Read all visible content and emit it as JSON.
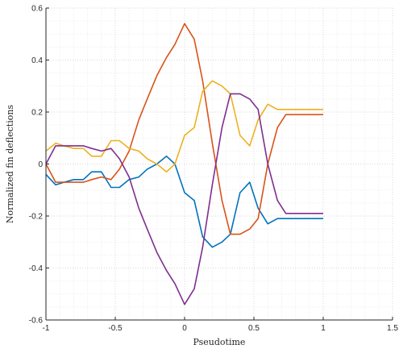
{
  "chart_data": {
    "type": "line",
    "title": "",
    "xlabel": "Pseudotime",
    "ylabel": "Normalized fin deflections",
    "xlim": [
      -1,
      1.5
    ],
    "ylim": [
      -0.6,
      0.6
    ],
    "xticks": [
      -1,
      -0.5,
      0,
      0.5,
      1,
      1.5
    ],
    "xtick_labels": [
      "-1",
      "-0.5",
      "0",
      "0.5",
      "1",
      "1.5"
    ],
    "yticks": [
      -0.6,
      -0.4,
      -0.2,
      0,
      0.2,
      0.4,
      0.6
    ],
    "ytick_labels": [
      "-0.6",
      "-0.4",
      "-0.2",
      "0",
      "0.2",
      "0.4",
      "0.6"
    ],
    "grid": true,
    "grid_style": "dotted, minor and major",
    "legend": "none",
    "series": [
      {
        "color": "#0072BD",
        "x": [
          -1,
          -0.93,
          -0.87,
          -0.8,
          -0.73,
          -0.67,
          -0.6,
          -0.53,
          -0.47,
          -0.4,
          -0.33,
          -0.27,
          -0.2,
          -0.13,
          -0.07,
          0,
          0.07,
          0.13,
          0.2,
          0.27,
          0.33,
          0.4,
          0.47,
          0.53,
          0.6,
          0.67,
          0.73,
          0.8,
          0.87,
          0.93,
          1
        ],
        "y": [
          -0.04,
          -0.08,
          -0.07,
          -0.06,
          -0.06,
          -0.03,
          -0.03,
          -0.09,
          -0.09,
          -0.06,
          -0.05,
          -0.02,
          0.0,
          0.03,
          0.0,
          -0.11,
          -0.14,
          -0.28,
          -0.32,
          -0.3,
          -0.27,
          -0.11,
          -0.07,
          -0.17,
          -0.23,
          -0.21,
          -0.21,
          -0.21,
          -0.21,
          -0.21,
          -0.21
        ]
      },
      {
        "color": "#D95319",
        "x": [
          -1,
          -0.93,
          -0.87,
          -0.8,
          -0.73,
          -0.67,
          -0.6,
          -0.53,
          -0.47,
          -0.4,
          -0.33,
          -0.27,
          -0.2,
          -0.13,
          -0.07,
          0,
          0.07,
          0.13,
          0.2,
          0.27,
          0.33,
          0.4,
          0.47,
          0.53,
          0.6,
          0.67,
          0.73,
          0.8,
          0.87,
          0.93,
          1
        ],
        "y": [
          0.0,
          -0.07,
          -0.07,
          -0.07,
          -0.07,
          -0.06,
          -0.05,
          -0.06,
          -0.02,
          0.05,
          0.17,
          0.25,
          0.34,
          0.41,
          0.46,
          0.54,
          0.48,
          0.32,
          0.08,
          -0.14,
          -0.27,
          -0.27,
          -0.25,
          -0.21,
          0.0,
          0.14,
          0.19,
          0.19,
          0.19,
          0.19,
          0.19
        ]
      },
      {
        "color": "#EDB120",
        "x": [
          -1,
          -0.93,
          -0.87,
          -0.8,
          -0.73,
          -0.67,
          -0.6,
          -0.53,
          -0.47,
          -0.4,
          -0.33,
          -0.27,
          -0.2,
          -0.13,
          -0.07,
          0,
          0.07,
          0.13,
          0.2,
          0.27,
          0.33,
          0.4,
          0.47,
          0.53,
          0.6,
          0.67,
          0.73,
          0.8,
          0.87,
          0.93,
          1
        ],
        "y": [
          0.05,
          0.08,
          0.07,
          0.06,
          0.06,
          0.03,
          0.03,
          0.09,
          0.09,
          0.06,
          0.05,
          0.02,
          0.0,
          -0.03,
          0.0,
          0.11,
          0.14,
          0.28,
          0.32,
          0.3,
          0.27,
          0.11,
          0.07,
          0.17,
          0.23,
          0.21,
          0.21,
          0.21,
          0.21,
          0.21,
          0.21
        ]
      },
      {
        "color": "#7E2F8E",
        "x": [
          -1,
          -0.93,
          -0.87,
          -0.8,
          -0.73,
          -0.67,
          -0.6,
          -0.53,
          -0.47,
          -0.4,
          -0.33,
          -0.27,
          -0.2,
          -0.13,
          -0.07,
          0,
          0.07,
          0.13,
          0.2,
          0.27,
          0.33,
          0.4,
          0.47,
          0.53,
          0.6,
          0.67,
          0.73,
          0.8,
          0.87,
          0.93,
          1
        ],
        "y": [
          0.0,
          0.07,
          0.07,
          0.07,
          0.07,
          0.06,
          0.05,
          0.06,
          0.02,
          -0.05,
          -0.17,
          -0.25,
          -0.34,
          -0.41,
          -0.46,
          -0.54,
          -0.48,
          -0.32,
          -0.08,
          0.14,
          0.27,
          0.27,
          0.25,
          0.21,
          0.0,
          -0.14,
          -0.19,
          -0.19,
          -0.19,
          -0.19,
          -0.19
        ]
      }
    ]
  }
}
